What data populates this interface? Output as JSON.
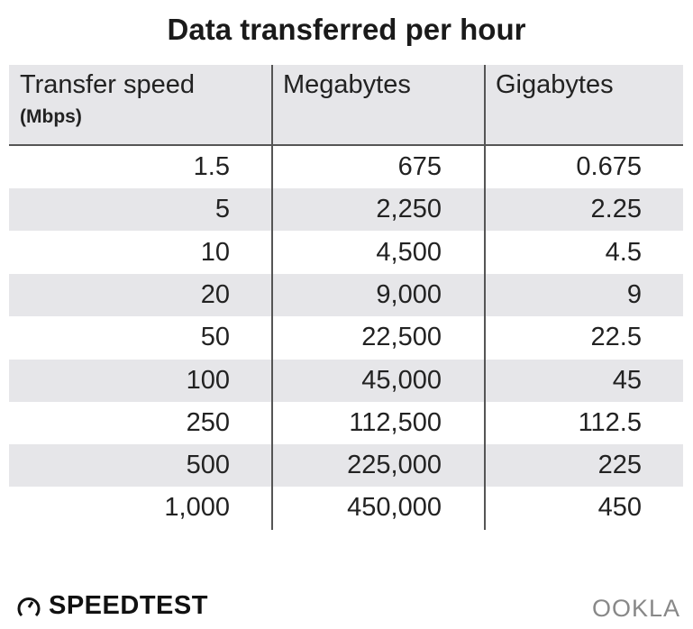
{
  "title": "Data transferred per hour",
  "chart_data": {
    "type": "table",
    "title": "Data transferred per hour",
    "columns": [
      {
        "label": "Transfer speed",
        "sublabel": "(Mbps)"
      },
      {
        "label": "Megabytes"
      },
      {
        "label": "Gigabytes"
      }
    ],
    "rows": [
      [
        "1.5",
        "675",
        "0.675"
      ],
      [
        "5",
        "2,250",
        "2.25"
      ],
      [
        "10",
        "4,500",
        "4.5"
      ],
      [
        "20",
        "9,000",
        "9"
      ],
      [
        "50",
        "22,500",
        "22.5"
      ],
      [
        "100",
        "45,000",
        "45"
      ],
      [
        "250",
        "112,500",
        "112.5"
      ],
      [
        "500",
        "225,000",
        "225"
      ],
      [
        "1,000",
        "450,000",
        "450"
      ]
    ]
  },
  "footer": {
    "brand": "SPEEDTEST",
    "logo": "OOKLA",
    "brand_icon": "speedometer-icon"
  },
  "colors": {
    "header_bg": "#e6e6e9",
    "stripe_bg": "#e6e6e9",
    "divider": "#555555"
  }
}
